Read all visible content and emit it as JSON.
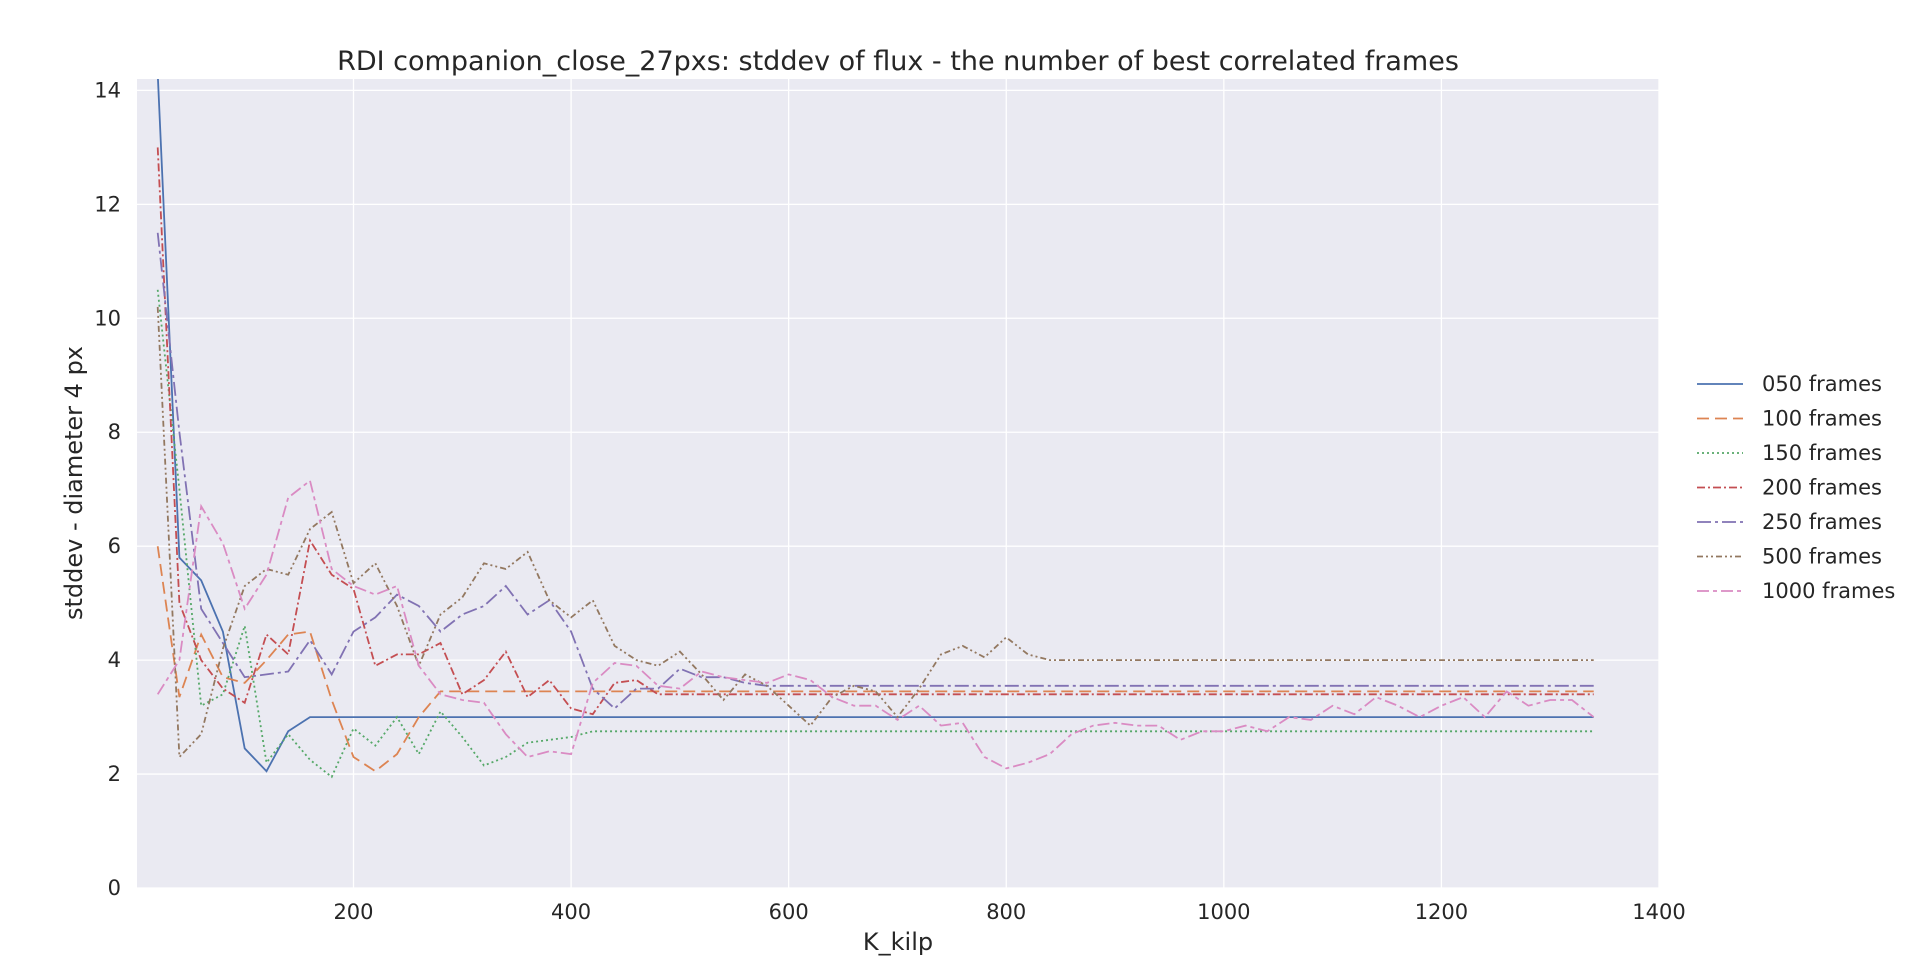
{
  "chart_data": {
    "type": "line",
    "title": "RDI companion_close_27pxs: stddev of flux - the number of best correlated frames",
    "xlabel": "K_kilp",
    "ylabel": "stddev - diameter 4 px",
    "xlim": [
      1,
      1400
    ],
    "ylim": [
      0,
      14.2
    ],
    "xticks": [
      200,
      400,
      600,
      800,
      1000,
      1200,
      1400
    ],
    "yticks": [
      0,
      2,
      4,
      6,
      8,
      10,
      12,
      14
    ],
    "grid": true,
    "legend_position": "right",
    "x": [
      20,
      40,
      60,
      80,
      100,
      120,
      140,
      160,
      180,
      200,
      220,
      240,
      260,
      280,
      300,
      320,
      340,
      360,
      380,
      400,
      420,
      440,
      460,
      480,
      500,
      520,
      540,
      560,
      580,
      600,
      620,
      640,
      660,
      680,
      700,
      720,
      740,
      760,
      780,
      800,
      820,
      840,
      860,
      880,
      900,
      920,
      940,
      960,
      980,
      1000,
      1020,
      1040,
      1060,
      1080,
      1100,
      1120,
      1140,
      1160,
      1180,
      1200,
      1220,
      1240,
      1260,
      1280,
      1300,
      1320,
      1340
    ],
    "series": [
      {
        "name": "050 frames",
        "color": "#4c72b0",
        "dash": "",
        "values": [
          14.3,
          5.8,
          5.4,
          4.5,
          2.45,
          2.05,
          2.75,
          3.0,
          3.0,
          3.0,
          3.0,
          3.0,
          3.0,
          3.0,
          3.0,
          3.0,
          3.0,
          3.0,
          3.0,
          3.0,
          3.0,
          3.0,
          3.0,
          3.0,
          3.0,
          3.0,
          3.0,
          3.0,
          3.0,
          3.0,
          3.0,
          3.0,
          3.0,
          3.0,
          3.0,
          3.0,
          3.0,
          3.0,
          3.0,
          3.0,
          3.0,
          3.0,
          3.0,
          3.0,
          3.0,
          3.0,
          3.0,
          3.0,
          3.0,
          3.0,
          3.0,
          3.0,
          3.0,
          3.0,
          3.0,
          3.0,
          3.0,
          3.0,
          3.0,
          3.0,
          3.0,
          3.0,
          3.0,
          3.0,
          3.0,
          3.0,
          3.0
        ]
      },
      {
        "name": "100 frames",
        "color": "#dd8452",
        "dash": "12,6",
        "values": [
          6.0,
          3.35,
          4.45,
          3.7,
          3.6,
          4.0,
          4.45,
          4.5,
          3.3,
          2.3,
          2.05,
          2.35,
          3.0,
          3.45,
          3.45,
          3.45,
          3.45,
          3.45,
          3.45,
          3.45,
          3.45,
          3.45,
          3.45,
          3.45,
          3.45,
          3.45,
          3.45,
          3.45,
          3.45,
          3.45,
          3.45,
          3.45,
          3.45,
          3.45,
          3.45,
          3.45,
          3.45,
          3.45,
          3.45,
          3.45,
          3.45,
          3.45,
          3.45,
          3.45,
          3.45,
          3.45,
          3.45,
          3.45,
          3.45,
          3.45,
          3.45,
          3.45,
          3.45,
          3.45,
          3.45,
          3.45,
          3.45,
          3.45,
          3.45,
          3.45,
          3.45,
          3.45,
          3.45,
          3.45,
          3.45,
          3.45,
          3.45
        ]
      },
      {
        "name": "150 frames",
        "color": "#55a868",
        "dash": "2,3",
        "values": [
          10.5,
          7.0,
          3.2,
          3.4,
          4.6,
          2.2,
          2.7,
          2.25,
          1.95,
          2.8,
          2.5,
          3.0,
          2.35,
          3.1,
          2.65,
          2.15,
          2.3,
          2.55,
          2.6,
          2.65,
          2.75,
          2.75,
          2.75,
          2.75,
          2.75,
          2.75,
          2.75,
          2.75,
          2.75,
          2.75,
          2.75,
          2.75,
          2.75,
          2.75,
          2.75,
          2.75,
          2.75,
          2.75,
          2.75,
          2.75,
          2.75,
          2.75,
          2.75,
          2.75,
          2.75,
          2.75,
          2.75,
          2.75,
          2.75,
          2.75,
          2.75,
          2.75,
          2.75,
          2.75,
          2.75,
          2.75,
          2.75,
          2.75,
          2.75,
          2.75,
          2.75,
          2.75,
          2.75,
          2.75,
          2.75,
          2.75,
          2.75
        ]
      },
      {
        "name": "200 frames",
        "color": "#c44e52",
        "dash": "8,3,2,3",
        "values": [
          13.0,
          5.0,
          4.0,
          3.5,
          3.25,
          4.45,
          4.1,
          6.1,
          5.5,
          5.25,
          3.9,
          4.1,
          4.1,
          4.3,
          3.4,
          3.65,
          4.15,
          3.35,
          3.65,
          3.15,
          3.05,
          3.6,
          3.65,
          3.4,
          3.4,
          3.4,
          3.4,
          3.4,
          3.4,
          3.4,
          3.4,
          3.4,
          3.4,
          3.4,
          3.4,
          3.4,
          3.4,
          3.4,
          3.4,
          3.4,
          3.4,
          3.4,
          3.4,
          3.4,
          3.4,
          3.4,
          3.4,
          3.4,
          3.4,
          3.4,
          3.4,
          3.4,
          3.4,
          3.4,
          3.4,
          3.4,
          3.4,
          3.4,
          3.4,
          3.4,
          3.4,
          3.4,
          3.4,
          3.4,
          3.4,
          3.4,
          3.4
        ]
      },
      {
        "name": "250 frames",
        "color": "#8172b3",
        "dash": "14,4,3,4",
        "values": [
          11.5,
          8.0,
          4.9,
          4.3,
          3.7,
          3.75,
          3.8,
          4.35,
          3.75,
          4.5,
          4.75,
          5.15,
          4.95,
          4.5,
          4.8,
          4.95,
          5.3,
          4.8,
          5.05,
          4.5,
          3.5,
          3.15,
          3.5,
          3.5,
          3.85,
          3.7,
          3.7,
          3.6,
          3.55,
          3.55,
          3.55,
          3.55,
          3.55,
          3.55,
          3.55,
          3.55,
          3.55,
          3.55,
          3.55,
          3.55,
          3.55,
          3.55,
          3.55,
          3.55,
          3.55,
          3.55,
          3.55,
          3.55,
          3.55,
          3.55,
          3.55,
          3.55,
          3.55,
          3.55,
          3.55,
          3.55,
          3.55,
          3.55,
          3.55,
          3.55,
          3.55,
          3.55,
          3.55,
          3.55,
          3.55,
          3.55,
          3.55
        ]
      },
      {
        "name": "500 frames",
        "color": "#937860",
        "dash": "6,3,2,3,2,3",
        "values": [
          10.2,
          2.3,
          2.7,
          4.2,
          5.3,
          5.6,
          5.5,
          6.3,
          6.6,
          5.35,
          5.7,
          4.95,
          3.9,
          4.8,
          5.1,
          5.7,
          5.6,
          5.9,
          5.05,
          4.75,
          5.05,
          4.25,
          4.0,
          3.9,
          4.15,
          3.75,
          3.3,
          3.75,
          3.55,
          3.2,
          2.85,
          3.35,
          3.55,
          3.45,
          3.0,
          3.5,
          4.1,
          4.25,
          4.05,
          4.4,
          4.1,
          4.0,
          4.0,
          4.0,
          4.0,
          4.0,
          4.0,
          4.0,
          4.0,
          4.0,
          4.0,
          4.0,
          4.0,
          4.0,
          4.0,
          4.0,
          4.0,
          4.0,
          4.0,
          4.0,
          4.0,
          4.0,
          4.0,
          4.0,
          4.0,
          4.0,
          4.0
        ]
      },
      {
        "name": "1000 frames",
        "color": "#da8bc3",
        "dash": "12,4,4,4",
        "values": [
          3.4,
          4.0,
          6.7,
          6.05,
          4.9,
          5.5,
          6.85,
          7.15,
          5.6,
          5.3,
          5.15,
          5.3,
          3.9,
          3.4,
          3.3,
          3.25,
          2.7,
          2.3,
          2.4,
          2.35,
          3.6,
          3.95,
          3.9,
          3.55,
          3.5,
          3.8,
          3.7,
          3.65,
          3.6,
          3.75,
          3.65,
          3.35,
          3.2,
          3.2,
          2.95,
          3.2,
          2.85,
          2.9,
          2.3,
          2.1,
          2.2,
          2.35,
          2.7,
          2.85,
          2.9,
          2.85,
          2.85,
          2.6,
          2.75,
          2.75,
          2.85,
          2.75,
          3.0,
          2.95,
          3.2,
          3.05,
          3.35,
          3.2,
          3.0,
          3.2,
          3.35,
          3.0,
          3.45,
          3.2,
          3.3,
          3.3,
          3.0
        ]
      }
    ]
  }
}
